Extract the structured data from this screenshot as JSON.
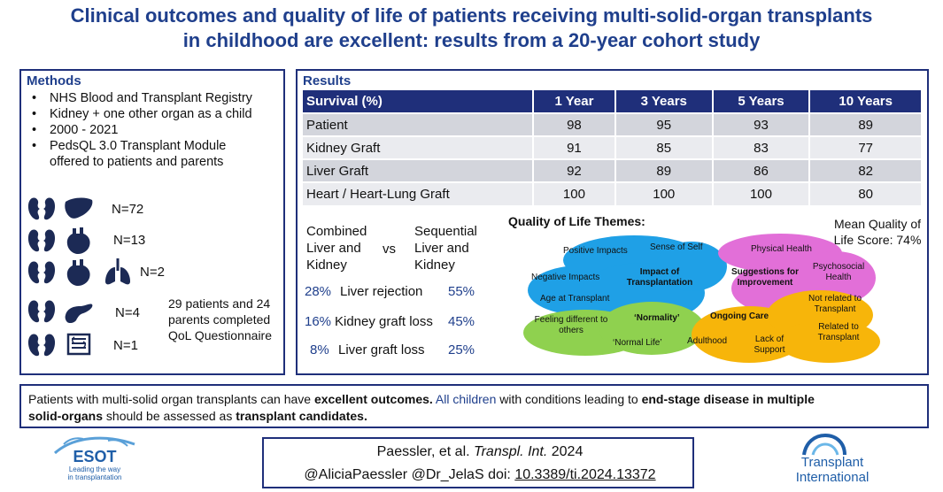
{
  "title": {
    "line1": "Clinical outcomes and quality of life of patients receiving multi-solid-organ transplants",
    "line2": "in childhood are excellent: results from a 20-year cohort study"
  },
  "methods": {
    "heading": "Methods",
    "items": [
      "NHS Blood and Transplant Registry",
      "Kidney + one other organ as a child",
      "2000 - 2021",
      "PedsQL 3.0 Transplant Module offered to patients and parents"
    ],
    "groups": [
      {
        "icons": [
          "kidney-icon",
          "liver-icon"
        ],
        "count": "N=72"
      },
      {
        "icons": [
          "kidney-icon",
          "heart-icon"
        ],
        "count": "N=13"
      },
      {
        "icons": [
          "kidney-icon",
          "heart-icon",
          "lungs-icon"
        ],
        "count": "N=2"
      },
      {
        "icons": [
          "kidney-icon",
          "pancreas-icon"
        ],
        "count": "N=4"
      },
      {
        "icons": [
          "kidney-icon",
          "intestine-icon"
        ],
        "count": "N=1"
      }
    ],
    "completed": "29 patients and 24 parents completed QoL Questionnaire"
  },
  "results": {
    "heading": "Results",
    "table": {
      "headers": [
        "Survival (%)",
        "1 Year",
        "3 Years",
        "5 Years",
        "10 Years"
      ],
      "rows": [
        [
          "Patient",
          "98",
          "95",
          "93",
          "89"
        ],
        [
          "Kidney Graft",
          "91",
          "85",
          "83",
          "77"
        ],
        [
          "Liver Graft",
          "92",
          "89",
          "86",
          "82"
        ],
        [
          "Heart / Heart-Lung Graft",
          "100",
          "100",
          "100",
          "80"
        ]
      ]
    },
    "comparison": {
      "left_label": "Combined Liver and Kidney",
      "vs": "vs",
      "right_label": "Sequential Liver and Kidney",
      "rows": [
        {
          "left": "28%",
          "label": "Liver rejection",
          "right": "55%"
        },
        {
          "left": "16%",
          "label": "Kidney graft loss",
          "right": "45%"
        },
        {
          "left": "8%",
          "label": "Liver graft loss",
          "right": "25%"
        }
      ]
    },
    "qol": {
      "title": "Quality of Life Themes:",
      "mean_score": "Mean Quality of Life Score: 74%",
      "themes": {
        "positive_impacts": "Positive Impacts",
        "sense_of_self": "Sense of Self",
        "negative_impacts": "Negative Impacts",
        "impact_of_transplantation": "Impact of Transplantation",
        "age_at_transplant": "Age at Transplant",
        "physical_health": "Physical Health",
        "suggestions_for_improvement": "Suggestions for Improvement",
        "psychosocial_health": "Psychosocial Health",
        "feeling_different": "Feeling different to others",
        "normality": "‘Normality’",
        "normal_life": "‘Normal Life’",
        "ongoing_care": "Ongoing Care",
        "adulthood": "Adulthood",
        "lack_of_support": "Lack of Support",
        "not_related": "Not related to Transplant",
        "related": "Related to Transplant"
      },
      "colors": {
        "blue": "#1fa0e6",
        "magenta": "#e26fd8",
        "green": "#8fd14f",
        "orange": "#f7b50a"
      }
    }
  },
  "conclusion": {
    "p1": "Patients with  multi-solid organ transplants can have ",
    "b1": "excellent outcomes.",
    "p2": " All children",
    "p3": " with  conditions leading to ",
    "b2": "end-stage disease in multiple",
    "b3": "solid-organs",
    "p4": " should be assessed as ",
    "b4": "transplant candidates."
  },
  "citation": {
    "authors": "Paessler, et al. ",
    "journal": "Transpl. Int.",
    "year": " 2024",
    "handles": "@AliciaPaessler @Dr_JelaS  doi: ",
    "doi": "10.3389/ti.2024.13372"
  },
  "logos": {
    "esot_name": "ESOT",
    "esot_tagline_1": "Leading the way",
    "esot_tagline_2": "in transplantation",
    "ti_line1": "Transplant",
    "ti_line2": "International"
  },
  "colors": {
    "accent": "#1f3f8c",
    "table_header": "#1f2f7a",
    "row_dark": "#d3d5dc",
    "row_light": "#eaebef"
  }
}
